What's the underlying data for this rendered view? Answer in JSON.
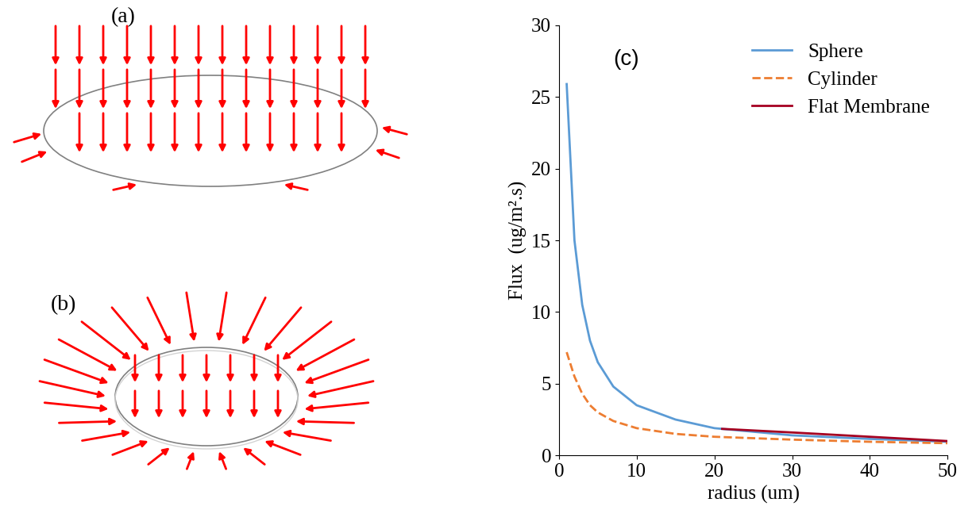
{
  "chart_data": {
    "type": "line",
    "annotations": [
      "(c)"
    ],
    "x_label": "radius (um)",
    "y_label": "Flux  (ug/m².s)",
    "series": [
      {
        "name": "Sphere",
        "color": "#5B9BD5",
        "line_style": "solid",
        "x": [
          1,
          2,
          3,
          4,
          5,
          7,
          10,
          15,
          20,
          30,
          40,
          50
        ],
        "values": [
          25.9,
          15.0,
          10.5,
          8.0,
          6.5,
          4.8,
          3.5,
          2.5,
          1.9,
          1.4,
          1.15,
          0.95
        ]
      },
      {
        "name": "Cylinder",
        "color": "#ED7D31",
        "line_style": "dashed",
        "x": [
          1,
          2,
          3,
          4,
          5,
          7,
          10,
          15,
          20,
          30,
          40,
          50
        ],
        "values": [
          7.2,
          5.5,
          4.3,
          3.5,
          3.0,
          2.4,
          1.9,
          1.5,
          1.3,
          1.1,
          0.95,
          0.85
        ]
      },
      {
        "name": "Flat Membrane",
        "color": "#A50021",
        "line_style": "solid",
        "x": [
          21,
          30,
          40,
          50
        ],
        "values": [
          1.85,
          1.6,
          1.3,
          1.0
        ]
      }
    ],
    "xlim": [
      0,
      50
    ],
    "xticks": [
      0,
      10,
      20,
      30,
      40,
      50
    ],
    "ylim": [
      0,
      30
    ],
    "yticks": [
      0,
      5,
      10,
      15,
      20,
      25,
      30
    ],
    "grid": false,
    "legend": "upper right"
  },
  "diagrams": [
    {
      "label": "(a)"
    },
    {
      "label": "(b)"
    }
  ]
}
